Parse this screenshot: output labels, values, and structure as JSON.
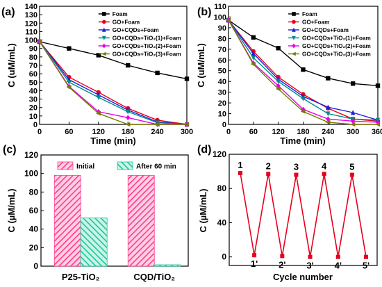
{
  "chart_data": [
    {
      "panel": "(a)",
      "type": "line",
      "xlabel": "Time (min)",
      "ylabel": "C (uM/mL)",
      "xlim": [
        0,
        300
      ],
      "ylim": [
        0,
        140
      ],
      "xticks": [
        0,
        60,
        120,
        180,
        240,
        300
      ],
      "yticks": [
        0,
        10,
        20,
        30,
        40,
        50,
        60,
        70,
        80,
        90,
        100,
        110,
        120,
        130,
        140
      ],
      "legend_position": "top-right",
      "grid": false,
      "series": [
        {
          "name": "Foam",
          "color": "#000000",
          "marker": "square",
          "x": [
            0,
            60,
            120,
            180,
            240,
            300
          ],
          "values": [
            98,
            90,
            82,
            70,
            61,
            54
          ]
        },
        {
          "name": "GO+Foam",
          "color": "#e8001c",
          "marker": "circle",
          "x": [
            0,
            60,
            120,
            180,
            240,
            300
          ],
          "values": [
            98,
            56,
            38,
            19,
            5,
            0
          ]
        },
        {
          "name": "GO+CQDs+Foam",
          "color": "#1f1fd6",
          "marker": "triangle",
          "x": [
            0,
            60,
            120,
            180,
            240,
            300
          ],
          "values": [
            98,
            53,
            35,
            17,
            3,
            0
          ]
        },
        {
          "name": "GO+CQDs+TiO₂(1)+Foam",
          "color": "#008b8b",
          "marker": "triangle-down",
          "x": [
            0,
            60,
            120,
            180,
            240,
            300
          ],
          "values": [
            98,
            50,
            32,
            15,
            2,
            0
          ]
        },
        {
          "name": "GO+CQDs+TiO₂(2)+Foam",
          "color": "#e600e6",
          "marker": "diamond",
          "x": [
            0,
            60,
            120,
            180,
            240,
            300
          ],
          "values": [
            98,
            45,
            15,
            8,
            0,
            0
          ]
        },
        {
          "name": "GO+CQDs+TiO₂(3)+Foam",
          "color": "#7a7a00",
          "marker": "triangle-left",
          "x": [
            0,
            60,
            120,
            180,
            240,
            300
          ],
          "values": [
            98,
            44,
            13,
            0,
            0,
            0
          ]
        }
      ]
    },
    {
      "panel": "(b)",
      "type": "line",
      "xlabel": "Time (min)",
      "ylabel": "C (uM/mL)",
      "xlim": [
        0,
        360
      ],
      "ylim": [
        0,
        110
      ],
      "xticks": [
        0,
        60,
        120,
        180,
        240,
        300,
        360
      ],
      "yticks": [
        0,
        10,
        20,
        30,
        40,
        50,
        60,
        70,
        80,
        90,
        100,
        110
      ],
      "legend_position": "top-right",
      "grid": false,
      "series": [
        {
          "name": "Foam",
          "color": "#000000",
          "marker": "square",
          "x": [
            0,
            60,
            120,
            180,
            240,
            300,
            360
          ],
          "values": [
            97,
            81,
            71,
            51,
            43,
            38,
            36
          ]
        },
        {
          "name": "GO+Foam",
          "color": "#e8001c",
          "marker": "circle",
          "x": [
            0,
            60,
            120,
            180,
            240,
            300,
            360
          ],
          "values": [
            97,
            68,
            44,
            28,
            15,
            5,
            3
          ]
        },
        {
          "name": "GO+CQDs+Foam",
          "color": "#1f1fd6",
          "marker": "triangle",
          "x": [
            0,
            60,
            120,
            180,
            240,
            300,
            360
          ],
          "values": [
            97,
            66,
            42,
            26,
            16,
            11,
            4
          ]
        },
        {
          "name": "GO+CQDs+TiO₂(1)+Foam",
          "color": "#008b8b",
          "marker": "triangle-down",
          "x": [
            0,
            60,
            120,
            180,
            240,
            300,
            360
          ],
          "values": [
            97,
            62,
            40,
            24,
            10,
            5,
            4
          ]
        },
        {
          "name": "GO+CQDs+TiO₂(2)+Foam",
          "color": "#e600e6",
          "marker": "diamond",
          "x": [
            0,
            60,
            120,
            180,
            240,
            300,
            360
          ],
          "values": [
            97,
            57,
            36,
            14,
            5,
            3,
            2
          ]
        },
        {
          "name": "GO+CQDs+TiO₂(3)+Foam",
          "color": "#7a7a00",
          "marker": "triangle-left",
          "x": [
            0,
            60,
            120,
            180,
            240,
            300,
            360
          ],
          "values": [
            97,
            56,
            33,
            12,
            2,
            0,
            0
          ]
        }
      ]
    },
    {
      "panel": "(c)",
      "type": "bar",
      "xlabel": "",
      "ylabel": "C (µM/mL)",
      "ylim": [
        0,
        120
      ],
      "yticks": [
        0,
        20,
        40,
        60,
        80,
        100,
        120
      ],
      "categories": [
        "P25-TiO₂",
        "CQD/TiO₂"
      ],
      "legend_position": "top",
      "grid": false,
      "series": [
        {
          "name": "Initial",
          "color": "#ff3c8c",
          "pattern": "diagonal-hatch",
          "values": [
            98,
            98
          ]
        },
        {
          "name": "After 60 min",
          "color": "#19c79b",
          "pattern": "diagonal-hatch",
          "values": [
            52,
            1.5
          ]
        }
      ]
    },
    {
      "panel": "(d)",
      "type": "line",
      "xlabel": "Cycle number",
      "ylabel": "C (µM/mL)",
      "ylim": [
        -10,
        120
      ],
      "yticks": [
        0,
        40,
        80,
        120
      ],
      "grid": false,
      "series": [
        {
          "name": "",
          "color": "#e8001c",
          "marker": "square",
          "labels": [
            "1",
            "1'",
            "2",
            "2'",
            "3",
            "3'",
            "4",
            "4'",
            "5",
            "5'"
          ],
          "values": [
            98,
            2,
            97,
            1,
            96,
            0,
            97,
            0,
            96,
            0
          ]
        }
      ]
    }
  ]
}
